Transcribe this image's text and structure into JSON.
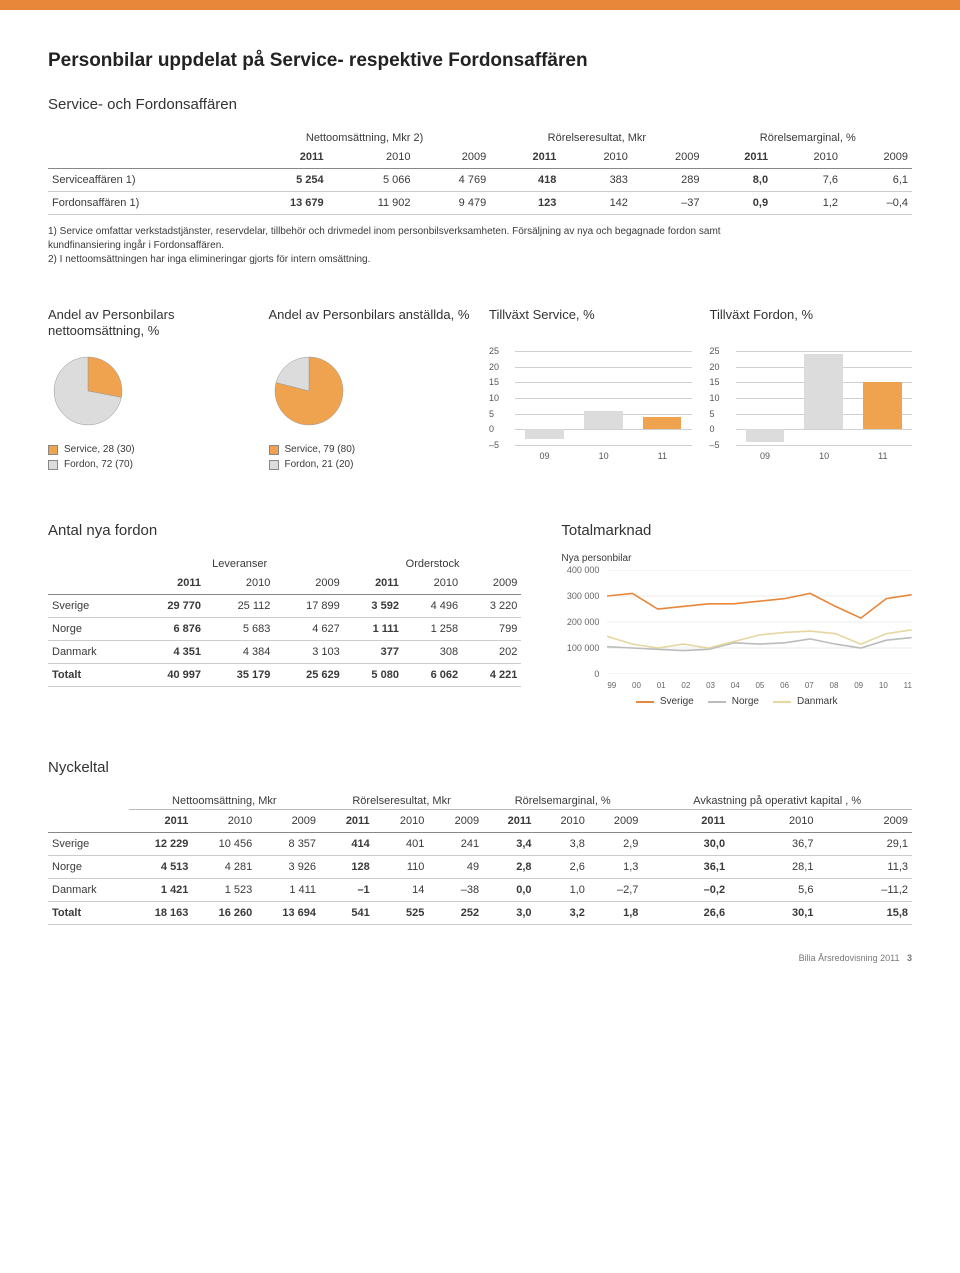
{
  "page": {
    "title": "Personbilar uppdelat på Service- respektive Fordonsaffären",
    "footer": "Bilia Årsredovisning 2011",
    "page_number": "3"
  },
  "colors": {
    "accent": "#e8863a",
    "bar_fill": "#f0a34f",
    "bar_light": "#dcdcdc",
    "pie_service": "#f0a34f",
    "pie_fordon": "#dcdcdc",
    "line_sverige": "#e8863a",
    "line_norge": "#bcbcbc",
    "line_danmark": "#e6d6a0"
  },
  "section1": {
    "subtitle": "Service- och Fordonsaffären",
    "group_headers": [
      "Nettoomsättning, Mkr 2)",
      "Rörelseresultat, Mkr",
      "Rörelsemarginal, %"
    ],
    "years": [
      "2011",
      "2010",
      "2009",
      "2011",
      "2010",
      "2009",
      "2011",
      "2010",
      "2009"
    ],
    "rows": [
      {
        "label": "Serviceaffären 1)",
        "cells": [
          "5 254",
          "5 066",
          "4 769",
          "418",
          "383",
          "289",
          "8,0",
          "7,6",
          "6,1"
        ]
      },
      {
        "label": "Fordonsaffären 1)",
        "cells": [
          "13 679",
          "11 902",
          "9 479",
          "123",
          "142",
          "–37",
          "0,9",
          "1,2",
          "–0,4"
        ]
      }
    ],
    "footnotes": [
      "1) Service omfattar verkstadstjänster, reservdelar, tillbehör och drivmedel inom personbilsverksamheten. Försäljning av nya och begagnade fordon samt kundfinansiering ingår i Fordonsaffären.",
      "2) I nettoomsättningen har inga elimineringar gjorts för intern omsättning."
    ]
  },
  "pie1": {
    "title": "Andel av Personbilars nettoomsättning, %",
    "legend": [
      {
        "label": "Service, 28 (30)",
        "color": "#f0a34f",
        "value": 28
      },
      {
        "label": "Fordon, 72 (70)",
        "color": "#dcdcdc",
        "value": 72
      }
    ]
  },
  "pie2": {
    "title": "Andel av Personbilars anställda, %",
    "legend": [
      {
        "label": "Service, 79 (80)",
        "color": "#f0a34f",
        "value": 79
      },
      {
        "label": "Fordon, 21 (20)",
        "color": "#dcdcdc",
        "value": 21
      }
    ]
  },
  "bar1": {
    "title": "Tillväxt Service, %",
    "type": "bar",
    "ylim_min": -5,
    "ylim_max": 25,
    "ytick_step": 5,
    "categories": [
      "09",
      "10",
      "11"
    ],
    "values": [
      -3,
      6,
      4
    ],
    "bar_colors": [
      "#dcdcdc",
      "#dcdcdc",
      "#f0a34f"
    ]
  },
  "bar2": {
    "title": "Tillväxt Fordon, %",
    "type": "bar",
    "ylim_min": -5,
    "ylim_max": 25,
    "ytick_step": 5,
    "categories": [
      "09",
      "10",
      "11"
    ],
    "values": [
      -4,
      24,
      15
    ],
    "bar_colors": [
      "#dcdcdc",
      "#dcdcdc",
      "#f0a34f"
    ]
  },
  "fordon_table": {
    "title": "Antal nya fordon",
    "group_headers": [
      "Leveranser",
      "Orderstock"
    ],
    "years": [
      "2011",
      "2010",
      "2009",
      "2011",
      "2010",
      "2009"
    ],
    "rows": [
      {
        "label": "Sverige",
        "cells": [
          "29 770",
          "25 112",
          "17 899",
          "3 592",
          "4 496",
          "3 220"
        ]
      },
      {
        "label": "Norge",
        "cells": [
          "6 876",
          "5 683",
          "4 627",
          "1 111",
          "1 258",
          "799"
        ]
      },
      {
        "label": "Danmark",
        "cells": [
          "4 351",
          "4 384",
          "3 103",
          "377",
          "308",
          "202"
        ]
      }
    ],
    "total": {
      "label": "Totalt",
      "cells": [
        "40 997",
        "35 179",
        "25 629",
        "5 080",
        "6 062",
        "4 221"
      ]
    }
  },
  "totalmarknad": {
    "title": "Totalmarknad",
    "subtitle": "Nya personbilar",
    "type": "line",
    "ylim_min": 0,
    "ylim_max": 400000,
    "yticks": [
      "400 000",
      "300 000",
      "200 000",
      "100 000",
      "0"
    ],
    "x_labels": [
      "99",
      "00",
      "01",
      "02",
      "03",
      "04",
      "05",
      "06",
      "07",
      "08",
      "09",
      "10",
      "11"
    ],
    "series": [
      {
        "name": "Sverige",
        "color": "#e8863a",
        "values": [
          300000,
          310000,
          250000,
          260000,
          270000,
          270000,
          280000,
          290000,
          310000,
          260000,
          215000,
          290000,
          305000
        ]
      },
      {
        "name": "Norge",
        "color": "#bcbcbc",
        "values": [
          105000,
          100000,
          95000,
          90000,
          95000,
          120000,
          115000,
          120000,
          135000,
          115000,
          100000,
          130000,
          140000
        ]
      },
      {
        "name": "Danmark",
        "color": "#e6d6a0",
        "values": [
          145000,
          115000,
          100000,
          115000,
          100000,
          125000,
          150000,
          160000,
          165000,
          155000,
          115000,
          155000,
          170000
        ]
      }
    ],
    "legend": [
      {
        "label": "Sverige",
        "color": "#e8863a"
      },
      {
        "label": "Norge",
        "color": "#bcbcbc"
      },
      {
        "label": "Danmark",
        "color": "#e6d6a0"
      }
    ]
  },
  "nyckeltal": {
    "title": "Nyckeltal",
    "group_headers": [
      "Nettoomsättning, Mkr",
      "Rörelseresultat, Mkr",
      "Rörelsemarginal, %",
      "Avkastning på operativt kapital , %"
    ],
    "years": [
      "2011",
      "2010",
      "2009",
      "2011",
      "2010",
      "2009",
      "2011",
      "2010",
      "2009",
      "2011",
      "2010",
      "2009"
    ],
    "rows": [
      {
        "label": "Sverige",
        "cells": [
          "12 229",
          "10 456",
          "8 357",
          "414",
          "401",
          "241",
          "3,4",
          "3,8",
          "2,9",
          "30,0",
          "36,7",
          "29,1"
        ]
      },
      {
        "label": "Norge",
        "cells": [
          "4 513",
          "4 281",
          "3 926",
          "128",
          "110",
          "49",
          "2,8",
          "2,6",
          "1,3",
          "36,1",
          "28,1",
          "11,3"
        ]
      },
      {
        "label": "Danmark",
        "cells": [
          "1 421",
          "1 523",
          "1 411",
          "–1",
          "14",
          "–38",
          "0,0",
          "1,0",
          "–2,7",
          "–0,2",
          "5,6",
          "–11,2"
        ]
      }
    ],
    "total": {
      "label": "Totalt",
      "cells": [
        "18 163",
        "16 260",
        "13 694",
        "541",
        "525",
        "252",
        "3,0",
        "3,2",
        "1,8",
        "26,6",
        "30,1",
        "15,8"
      ]
    }
  }
}
